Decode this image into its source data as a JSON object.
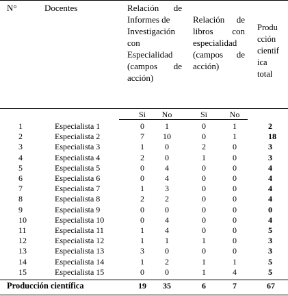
{
  "table": {
    "headers": {
      "num": "N°",
      "docentes": "Docentes",
      "informes": [
        "Relación de",
        "Informes de",
        "Investigación",
        "con",
        "Especialidad",
        "(campos de",
        "acción)"
      ],
      "libros": [
        "Relación de",
        "libros con",
        "especialidad",
        "(campos de",
        "acción)"
      ],
      "produccion": [
        "Produ",
        "cción",
        "cientif",
        "ica",
        "total"
      ]
    },
    "subheaders": [
      "Si",
      "No",
      "Si",
      "No"
    ],
    "rows": [
      {
        "num": "1",
        "name": "Especialista 1",
        "inf_si": "0",
        "inf_no": "1",
        "lib_si": "0",
        "lib_no": "1",
        "total": "2"
      },
      {
        "num": "2",
        "name": "Especialista 2",
        "inf_si": "7",
        "inf_no": "10",
        "lib_si": "0",
        "lib_no": "1",
        "total": "18"
      },
      {
        "num": "3",
        "name": "Especialista 3",
        "inf_si": "1",
        "inf_no": "0",
        "lib_si": "2",
        "lib_no": "0",
        "total": "3"
      },
      {
        "num": "4",
        "name": "Especialista 4",
        "inf_si": "2",
        "inf_no": "0",
        "lib_si": "1",
        "lib_no": "0",
        "total": "3"
      },
      {
        "num": "5",
        "name": "Especialista 5",
        "inf_si": "0",
        "inf_no": "4",
        "lib_si": "0",
        "lib_no": "0",
        "total": "4"
      },
      {
        "num": "6",
        "name": "Especialista 6",
        "inf_si": "0",
        "inf_no": "4",
        "lib_si": "0",
        "lib_no": "0",
        "total": "4"
      },
      {
        "num": "7",
        "name": "Especialista 7",
        "inf_si": "1",
        "inf_no": "3",
        "lib_si": "0",
        "lib_no": "0",
        "total": "4"
      },
      {
        "num": "8",
        "name": "Especialista 8",
        "inf_si": "2",
        "inf_no": "2",
        "lib_si": "0",
        "lib_no": "0",
        "total": "4"
      },
      {
        "num": "9",
        "name": "Especialista 9",
        "inf_si": "0",
        "inf_no": "0",
        "lib_si": "0",
        "lib_no": "0",
        "total": "0"
      },
      {
        "num": "10",
        "name": "Especialista 10",
        "inf_si": "0",
        "inf_no": "4",
        "lib_si": "0",
        "lib_no": "0",
        "total": "4"
      },
      {
        "num": "11",
        "name": "Especialista 11",
        "inf_si": "1",
        "inf_no": "4",
        "lib_si": "0",
        "lib_no": "0",
        "total": "5"
      },
      {
        "num": "12",
        "name": "Especialista 12",
        "inf_si": "1",
        "inf_no": "1",
        "lib_si": "1",
        "lib_no": "0",
        "total": "3"
      },
      {
        "num": "13",
        "name": "Especialista 13",
        "inf_si": "3",
        "inf_no": "0",
        "lib_si": "0",
        "lib_no": "0",
        "total": "3"
      },
      {
        "num": "14",
        "name": "Especialista 14",
        "inf_si": "1",
        "inf_no": "2",
        "lib_si": "1",
        "lib_no": "1",
        "total": "5"
      },
      {
        "num": "15",
        "name": "Especialista 15",
        "inf_si": "0",
        "inf_no": "0",
        "lib_si": "1",
        "lib_no": "4",
        "total": "5"
      }
    ],
    "footer": {
      "label": "Producción científica",
      "inf_si": "19",
      "inf_no": "35",
      "lib_si": "6",
      "lib_no": "7",
      "total": "67"
    }
  }
}
